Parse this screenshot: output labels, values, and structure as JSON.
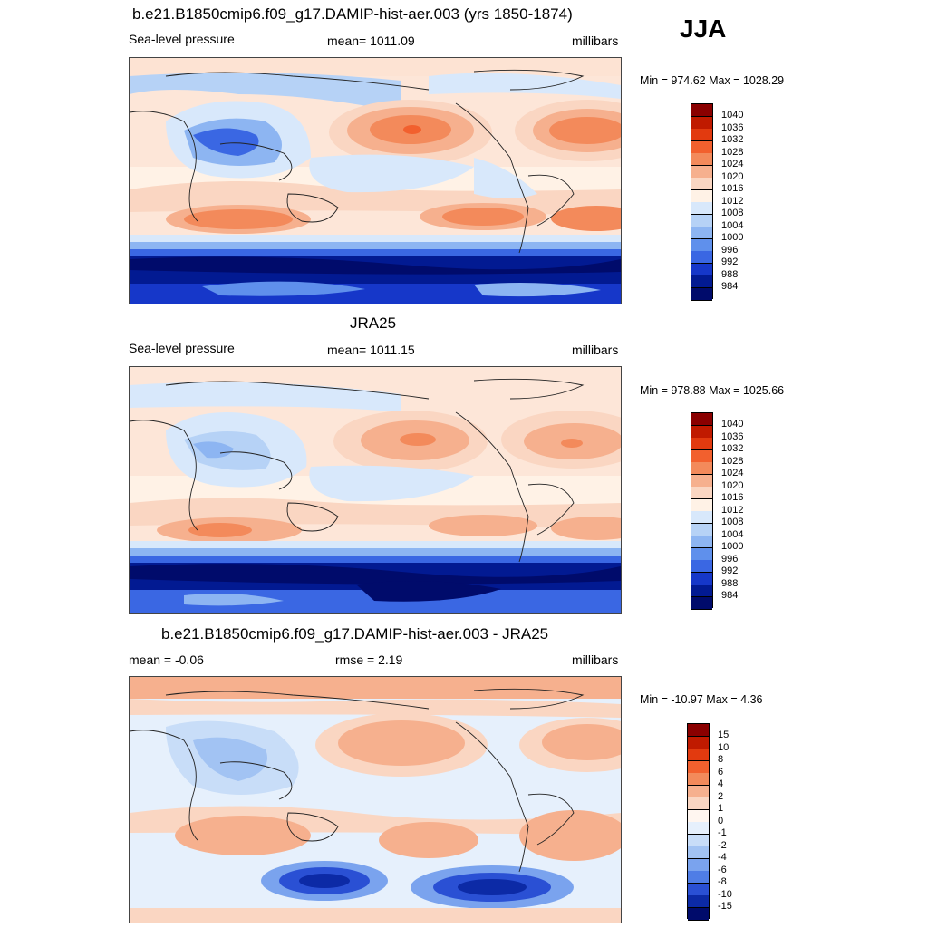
{
  "season": "JJA",
  "panels": [
    {
      "id": "model",
      "title": "b.e21.B1850cmip6.f09_g17.DAMIP-hist-aer.003 (yrs 1850-1874)",
      "left_label": "Sea-level pressure",
      "center_label": "mean= 1011.09",
      "right_label": "millibars",
      "minmax": "Min = 974.62 Max = 1028.29",
      "colorbar": {
        "levels": [
          "1040",
          "1036",
          "1032",
          "1028",
          "1024",
          "1020",
          "1016",
          "1012",
          "1008",
          "1004",
          "1000",
          "996",
          "992",
          "988",
          "984"
        ],
        "colors": [
          "#8a0000",
          "#c01a00",
          "#e23a0f",
          "#f2602e",
          "#f38a5b",
          "#f6b08e",
          "#fad6c2",
          "#fff2e6",
          "#d8e8fb",
          "#b6d2f6",
          "#8db5f2",
          "#5f90ec",
          "#3a67e3",
          "#1637c9",
          "#021a92",
          "#000b6b"
        ]
      }
    },
    {
      "id": "obs",
      "title": "JRA25",
      "left_label": "Sea-level pressure",
      "center_label": "mean= 1011.15",
      "right_label": "millibars",
      "minmax": "Min = 978.88 Max = 1025.66",
      "colorbar": {
        "levels": [
          "1040",
          "1036",
          "1032",
          "1028",
          "1024",
          "1020",
          "1016",
          "1012",
          "1008",
          "1004",
          "1000",
          "996",
          "992",
          "988",
          "984"
        ],
        "colors": [
          "#8a0000",
          "#c01a00",
          "#e23a0f",
          "#f2602e",
          "#f38a5b",
          "#f6b08e",
          "#fad6c2",
          "#fff2e6",
          "#d8e8fb",
          "#b6d2f6",
          "#8db5f2",
          "#5f90ec",
          "#3a67e3",
          "#1637c9",
          "#021a92",
          "#000b6b"
        ]
      }
    },
    {
      "id": "diff",
      "title": "b.e21.B1850cmip6.f09_g17.DAMIP-hist-aer.003 - JRA25",
      "left_label": "mean =  -0.06",
      "center_label": "rmse =   2.19",
      "right_label": "millibars",
      "minmax": "Min = -10.97 Max =   4.36",
      "colorbar": {
        "levels": [
          "15",
          "10",
          "8",
          "6",
          "4",
          "2",
          "1",
          "0",
          "-1",
          "-2",
          "-4",
          "-6",
          "-8",
          "-10",
          "-15"
        ],
        "colors": [
          "#8a0000",
          "#c01a00",
          "#e23a0f",
          "#f2602e",
          "#f38a5b",
          "#f6b08e",
          "#fad6c2",
          "#fff6f0",
          "#e6f0fc",
          "#c8ddf8",
          "#a2c3f3",
          "#7aa3ee",
          "#4f7de6",
          "#2a50d4",
          "#0c2aa6",
          "#000b6b"
        ]
      }
    }
  ]
}
